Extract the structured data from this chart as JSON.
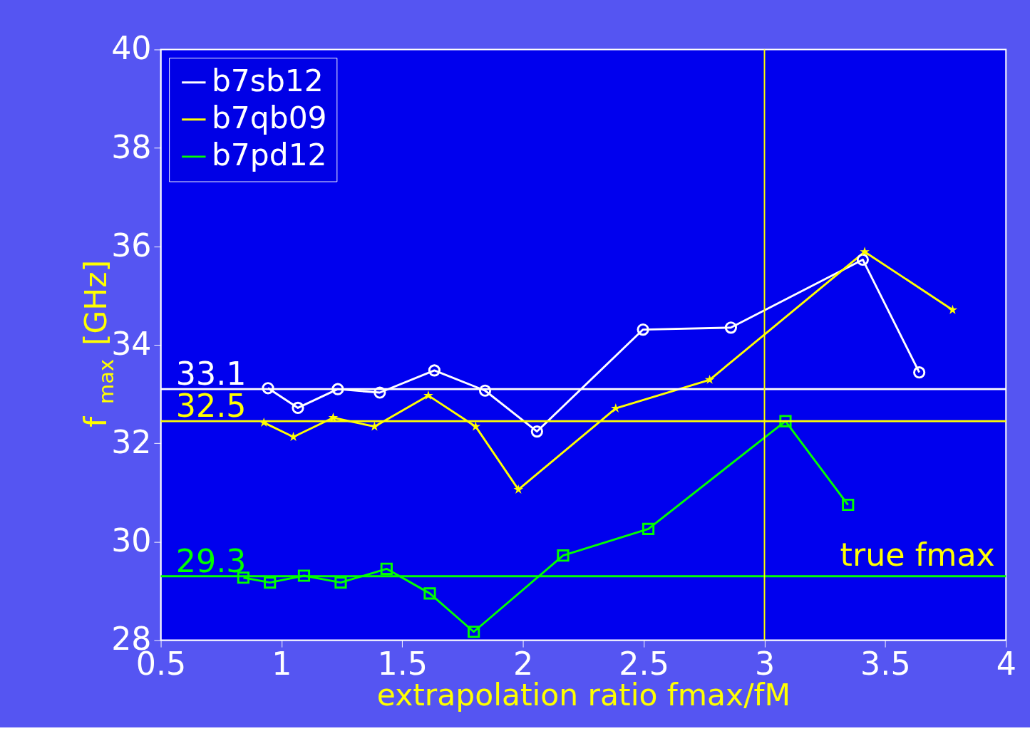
{
  "chart_data": {
    "type": "line",
    "xlabel": "extrapolation ratio fmax/fM",
    "ylabel": "f$_{max}$ [GHz]",
    "xlim": [
      0.5,
      4
    ],
    "xticks": [
      0.5,
      1,
      1.5,
      2,
      2.5,
      3,
      3.5,
      4
    ],
    "ylim": [
      28,
      40
    ],
    "yticks": [
      28,
      30,
      32,
      34,
      36,
      38,
      40
    ],
    "grid": false,
    "legend": "top left",
    "series": [
      {
        "name": "b7sb12",
        "color": "#ffffff",
        "marker": "circle",
        "x": [
          0.944,
          1.068,
          1.233,
          1.407,
          1.633,
          1.843,
          2.058,
          2.497,
          2.861,
          3.407,
          3.641
        ],
        "values": [
          33.12,
          32.72,
          33.1,
          33.03,
          33.48,
          33.07,
          32.24,
          34.31,
          34.35,
          35.73,
          33.44
        ]
      },
      {
        "name": "b7qb09",
        "color": "#ffff00",
        "marker": "star",
        "x": [
          0.927,
          1.049,
          1.214,
          1.385,
          1.608,
          1.804,
          1.981,
          2.384,
          2.773,
          3.415,
          3.779
        ],
        "values": [
          32.42,
          32.13,
          32.52,
          32.34,
          32.97,
          32.34,
          31.06,
          32.71,
          33.29,
          35.89,
          34.71
        ]
      },
      {
        "name": "b7pd12",
        "color": "#00ff00",
        "marker": "square",
        "x": [
          0.842,
          0.952,
          1.093,
          1.245,
          1.435,
          1.614,
          1.796,
          2.166,
          2.519,
          3.087,
          3.346
        ],
        "values": [
          29.27,
          29.17,
          29.31,
          29.17,
          29.45,
          28.95,
          28.17,
          29.72,
          30.26,
          32.45,
          30.75
        ]
      }
    ],
    "ref_lines": [
      {
        "axis": "y",
        "value": 33.1,
        "label": "33.1",
        "color": "#ffffff"
      },
      {
        "axis": "y",
        "value": 32.45,
        "label": "32.5",
        "color": "#ffff00"
      },
      {
        "axis": "y",
        "value": 29.3,
        "label": "29.3",
        "color": "#00ff00"
      },
      {
        "axis": "x",
        "value": 3,
        "label": "true fmax",
        "color": "#ffff00"
      }
    ]
  }
}
